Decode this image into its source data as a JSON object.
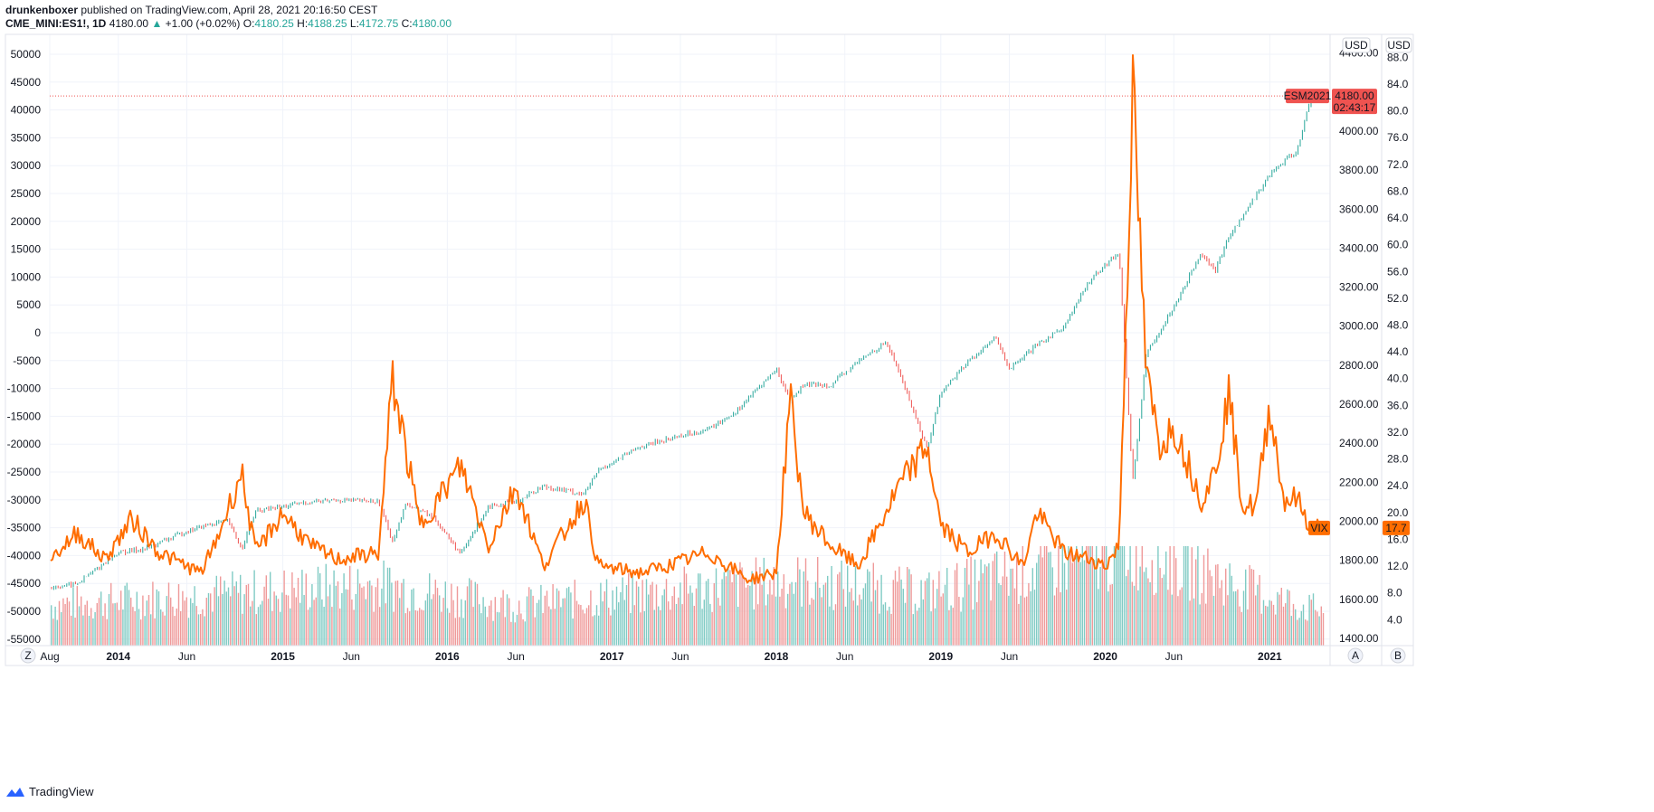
{
  "header": {
    "author": "drunkenboxer",
    "published": "published on TradingView.com, April 28, 2021 20:16:50 CEST",
    "symbol": "CME_MINI:ES1!, 1D",
    "last": "4180.00",
    "arrow": "▲",
    "change": "+1.00 (+0.02%)",
    "o_label": "O:",
    "o_val": "4180.25",
    "h_label": "H:",
    "h_val": "4188.25",
    "l_label": "L:",
    "l_val": "4172.75",
    "c_label": "C:",
    "c_val": "4180.00"
  },
  "footer": {
    "brand": "TradingView"
  },
  "buttons": {
    "z": "Z",
    "a": "A",
    "b": "B"
  },
  "colors": {
    "es_up": "#26a69a",
    "es_down": "#ef5350",
    "vix": "#ff6d00",
    "price_tag": "#ef5350",
    "vol_up": "#80cbc4",
    "vol_down": "#ef9a9a",
    "grid": "#f0f3fa"
  },
  "chart_data": [
    {
      "type": "line",
      "title": "CME_MINI:ES1!, 1D",
      "series": [
        {
          "name": "ESM2021",
          "x": [
            "2013-08",
            "2013-10",
            "2014-01",
            "2014-03",
            "2014-06",
            "2014-08",
            "2014-09",
            "2014-10",
            "2014-11",
            "2015-03",
            "2015-05",
            "2015-08",
            "2015-09",
            "2015-10",
            "2015-12",
            "2016-02",
            "2016-04",
            "2016-06",
            "2016-08",
            "2016-11",
            "2016-12",
            "2017-03",
            "2017-06",
            "2017-08",
            "2017-10",
            "2018-01",
            "2018-02",
            "2018-03",
            "2018-05",
            "2018-07",
            "2018-09",
            "2018-10",
            "2018-12",
            "2019-01",
            "2019-03",
            "2019-05",
            "2019-06",
            "2019-08",
            "2019-10",
            "2019-12",
            "2020-02",
            "2020-03",
            "2020-04",
            "2020-06",
            "2020-08",
            "2020-09",
            "2020-10",
            "2020-11",
            "2021-01",
            "2021-03",
            "2021-04"
          ],
          "values": [
            1660,
            1680,
            1840,
            1860,
            1950,
            1990,
            2000,
            1860,
            2050,
            2100,
            2110,
            2100,
            1900,
            2090,
            2020,
            1830,
            2080,
            2100,
            2180,
            2140,
            2260,
            2380,
            2440,
            2470,
            2560,
            2780,
            2620,
            2700,
            2700,
            2820,
            2920,
            2760,
            2370,
            2660,
            2820,
            2940,
            2780,
            2900,
            3000,
            3250,
            3380,
            2200,
            2860,
            3100,
            3380,
            3280,
            3460,
            3560,
            3780,
            3900,
            4180
          ]
        },
        {
          "name": "VIX",
          "x": [
            "2013-08",
            "2013-10",
            "2013-12",
            "2014-02",
            "2014-04",
            "2014-07",
            "2014-08",
            "2014-10",
            "2014-11",
            "2015-01",
            "2015-03",
            "2015-05",
            "2015-08",
            "2015-09",
            "2015-11",
            "2016-01",
            "2016-02",
            "2016-04",
            "2016-06",
            "2016-08",
            "2016-11",
            "2016-12",
            "2017-03",
            "2017-05",
            "2017-08",
            "2017-11",
            "2018-01",
            "2018-02",
            "2018-03",
            "2018-05",
            "2018-07",
            "2018-10",
            "2018-12",
            "2019-01",
            "2019-03",
            "2019-05",
            "2019-07",
            "2019-08",
            "2019-10",
            "2019-12",
            "2020-01",
            "2020-02",
            "2020-03",
            "2020-04",
            "2020-05",
            "2020-06",
            "2020-08",
            "2020-09",
            "2020-10",
            "2020-11",
            "2020-12",
            "2021-01",
            "2021-02",
            "2021-03",
            "2021-04"
          ],
          "values": [
            13,
            17,
            13,
            19,
            14,
            11,
            15,
            26,
            14,
            20,
            15,
            13,
            14,
            40,
            18,
            24,
            27,
            15,
            24,
            12,
            22,
            12,
            11,
            12,
            14,
            10,
            11,
            37,
            20,
            15,
            12,
            24,
            30,
            18,
            14,
            17,
            12,
            20,
            14,
            13,
            12,
            15,
            83,
            40,
            30,
            33,
            22,
            26,
            38,
            21,
            21,
            36,
            22,
            22,
            17.7
          ]
        },
        {
          "name": "Volume",
          "x": [
            "2013-08",
            "2014-10",
            "2015-08",
            "2016-06",
            "2018-02",
            "2018-12",
            "2020-03",
            "2021-01",
            "2021-04"
          ],
          "values": [
            1.0,
            1.3,
            1.5,
            1.0,
            1.6,
            1.3,
            2.4,
            1.2,
            0.9
          ]
        }
      ],
      "axes": {
        "x_ticks": [
          "Aug",
          "2014",
          "Jun",
          "2015",
          "Jun",
          "2016",
          "Jun",
          "2017",
          "Jun",
          "2018",
          "Jun",
          "2019",
          "Jun",
          "2020",
          "Jun",
          "2021"
        ],
        "left_ticks": [
          "50000",
          "45000",
          "40000",
          "35000",
          "30000",
          "25000",
          "20000",
          "15000",
          "10000",
          "5000",
          "0",
          "-5000",
          "-10000",
          "-15000",
          "-20000",
          "-25000",
          "-30000",
          "-35000",
          "-40000",
          "-45000",
          "-50000",
          "-55000"
        ],
        "es_ticks": [
          "4400.00",
          "4000.00",
          "3800.00",
          "3600.00",
          "3400.00",
          "3200.00",
          "3000.00",
          "2800.00",
          "2600.00",
          "2400.00",
          "2200.00",
          "2000.00",
          "1800.00",
          "1600.00",
          "1400.00"
        ],
        "vix_ticks": [
          "88.0",
          "84.0",
          "80.0",
          "76.0",
          "72.0",
          "68.0",
          "64.0",
          "60.0",
          "56.0",
          "52.0",
          "48.0",
          "44.0",
          "40.0",
          "36.0",
          "32.0",
          "28.0",
          "24.0",
          "20.0",
          "16.0",
          "12.0",
          "8.0",
          "4.0"
        ],
        "es_unit": "USD",
        "vix_unit": "USD",
        "es_range": [
          1400,
          4440
        ],
        "vix_range": [
          1.2,
          89.8
        ]
      },
      "tags": {
        "es_name": "ESM2021",
        "es_price": "4180.00",
        "es_countdown": "02:43:17",
        "vix_name": "VIX",
        "vix_price": "17.7"
      },
      "grid": true
    }
  ]
}
